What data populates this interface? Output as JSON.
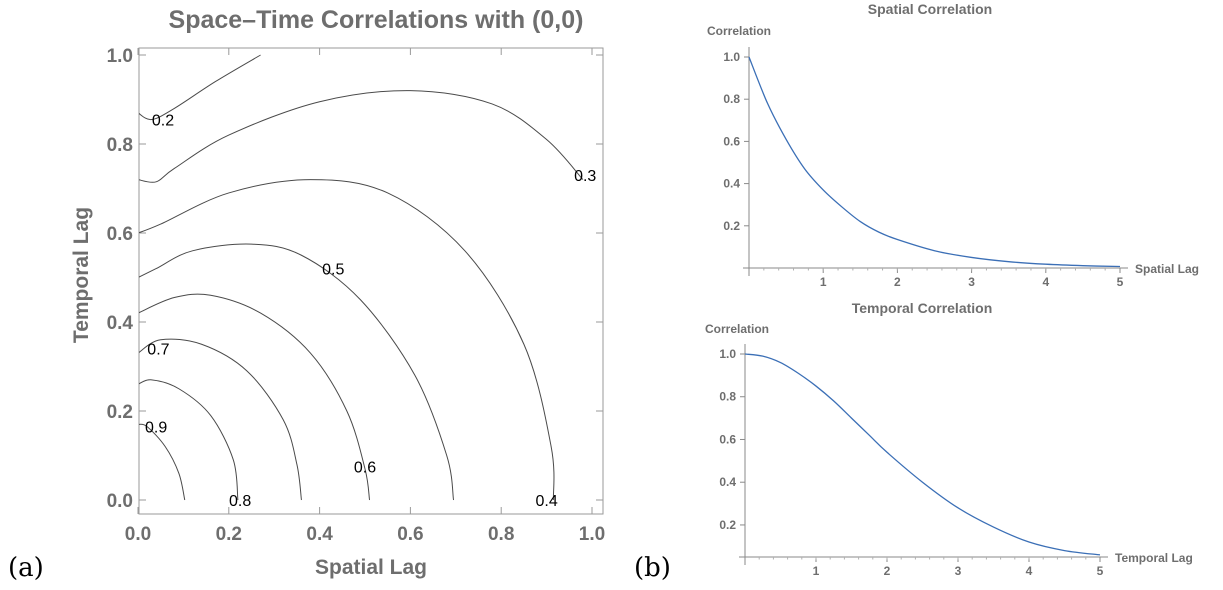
{
  "labels": {
    "a": "(a)",
    "b": "(b)"
  },
  "chart_data": [
    {
      "type": "contour",
      "title": "Space–Time Correlations with (0,0)",
      "xlabel": "Spatial Lag",
      "ylabel": "Temporal Lag",
      "xlim": [
        0,
        1
      ],
      "ylim": [
        0,
        1
      ],
      "xticks": [
        "0.0",
        "0.2",
        "0.4",
        "0.6",
        "0.8",
        "1.0"
      ],
      "yticks": [
        "0.0",
        "0.2",
        "0.4",
        "0.6",
        "0.8",
        "1.0"
      ],
      "contours": [
        {
          "level": "0.9",
          "points": [
            [
              0,
              0.17
            ],
            [
              0.02,
              0.165
            ],
            [
              0.06,
              0.12
            ],
            [
              0.09,
              0.06
            ],
            [
              0.103,
              0.0
            ]
          ]
        },
        {
          "level": "0.8",
          "points": [
            [
              0,
              0.26
            ],
            [
              0.03,
              0.27
            ],
            [
              0.09,
              0.25
            ],
            [
              0.16,
              0.19
            ],
            [
              0.21,
              0.09
            ],
            [
              0.22,
              0.0
            ]
          ]
        },
        {
          "level": "0.7",
          "points": [
            [
              0,
              0.33
            ],
            [
              0.05,
              0.36
            ],
            [
              0.14,
              0.35
            ],
            [
              0.24,
              0.29
            ],
            [
              0.32,
              0.18
            ],
            [
              0.35,
              0.08
            ],
            [
              0.36,
              0.0
            ]
          ]
        },
        {
          "level": "0.6",
          "points": [
            [
              0,
              0.42
            ],
            [
              0.08,
              0.455
            ],
            [
              0.16,
              0.46
            ],
            [
              0.27,
              0.42
            ],
            [
              0.38,
              0.33
            ],
            [
              0.46,
              0.2
            ],
            [
              0.5,
              0.07
            ],
            [
              0.51,
              0.0
            ]
          ]
        },
        {
          "level": "0.5",
          "points": [
            [
              0,
              0.5
            ],
            [
              0.04,
              0.52
            ],
            [
              0.12,
              0.56
            ],
            [
              0.25,
              0.575
            ],
            [
              0.36,
              0.55
            ],
            [
              0.49,
              0.45
            ],
            [
              0.61,
              0.28
            ],
            [
              0.68,
              0.1
            ],
            [
              0.695,
              0.0
            ]
          ]
        },
        {
          "level": "0.4",
          "points": [
            [
              0,
              0.6
            ],
            [
              0.05,
              0.62
            ],
            [
              0.2,
              0.69
            ],
            [
              0.38,
              0.72
            ],
            [
              0.55,
              0.69
            ],
            [
              0.72,
              0.56
            ],
            [
              0.85,
              0.35
            ],
            [
              0.91,
              0.12
            ],
            [
              0.915,
              0.0
            ]
          ]
        },
        {
          "level": "0.3",
          "points": [
            [
              0,
              0.72
            ],
            [
              0.04,
              0.715
            ],
            [
              0.08,
              0.745
            ],
            [
              0.2,
              0.82
            ],
            [
              0.4,
              0.895
            ],
            [
              0.6,
              0.92
            ],
            [
              0.78,
              0.89
            ],
            [
              0.9,
              0.81
            ],
            [
              0.98,
              0.72
            ]
          ]
        },
        {
          "level": "0.2",
          "points": [
            [
              0,
              0.87
            ],
            [
              0.03,
              0.855
            ],
            [
              0.08,
              0.88
            ],
            [
              0.17,
              0.94
            ],
            [
              0.27,
              1.0
            ]
          ]
        }
      ],
      "contour_labels": [
        {
          "text": "0.2",
          "x": 0.055,
          "y": 0.855
        },
        {
          "text": "0.3",
          "x": 0.985,
          "y": 0.73
        },
        {
          "text": "0.5",
          "x": 0.43,
          "y": 0.52
        },
        {
          "text": "0.7",
          "x": 0.045,
          "y": 0.34
        },
        {
          "text": "0.9",
          "x": 0.04,
          "y": 0.165
        },
        {
          "text": "0.6",
          "x": 0.5,
          "y": 0.075
        },
        {
          "text": "0.8",
          "x": 0.225,
          "y": 0.0
        },
        {
          "text": "0.4",
          "x": 0.9,
          "y": 0.0
        }
      ],
      "line_color": "#4a4a4a"
    },
    {
      "type": "line",
      "title": "Spatial Correlation",
      "xlabel": "Spatial Lag",
      "ylabel": "Correlation",
      "xlim": [
        0,
        5
      ],
      "ylim": [
        0,
        1.0
      ],
      "xticks": [
        1,
        2,
        3,
        4,
        5
      ],
      "yticks": [
        "0.2",
        "0.4",
        "0.6",
        "0.8",
        "1.0"
      ],
      "series": [
        {
          "x": [
            0,
            0.25,
            0.5,
            0.75,
            1,
            1.25,
            1.5,
            1.75,
            2,
            2.5,
            3,
            3.5,
            4,
            4.5,
            5
          ],
          "y": [
            1.0,
            0.78,
            0.61,
            0.47,
            0.37,
            0.29,
            0.22,
            0.17,
            0.135,
            0.082,
            0.05,
            0.03,
            0.018,
            0.011,
            0.007
          ]
        }
      ],
      "color": "#3b6fb6"
    },
    {
      "type": "line",
      "title": "Temporal Correlation",
      "xlabel": "Temporal Lag",
      "ylabel": "Correlation",
      "xlim": [
        0,
        5
      ],
      "ylim": [
        0.05,
        1.0
      ],
      "xticks": [
        1,
        2,
        3,
        4,
        5
      ],
      "yticks": [
        "0.2",
        "0.4",
        "0.6",
        "0.8",
        "1.0"
      ],
      "series": [
        {
          "x": [
            0,
            0.25,
            0.5,
            0.75,
            1,
            1.25,
            1.5,
            1.75,
            2,
            2.5,
            3,
            3.5,
            4,
            4.5,
            5
          ],
          "y": [
            1.0,
            0.99,
            0.96,
            0.91,
            0.85,
            0.78,
            0.7,
            0.62,
            0.54,
            0.4,
            0.28,
            0.19,
            0.12,
            0.08,
            0.06
          ]
        }
      ],
      "color": "#3b6fb6"
    }
  ]
}
